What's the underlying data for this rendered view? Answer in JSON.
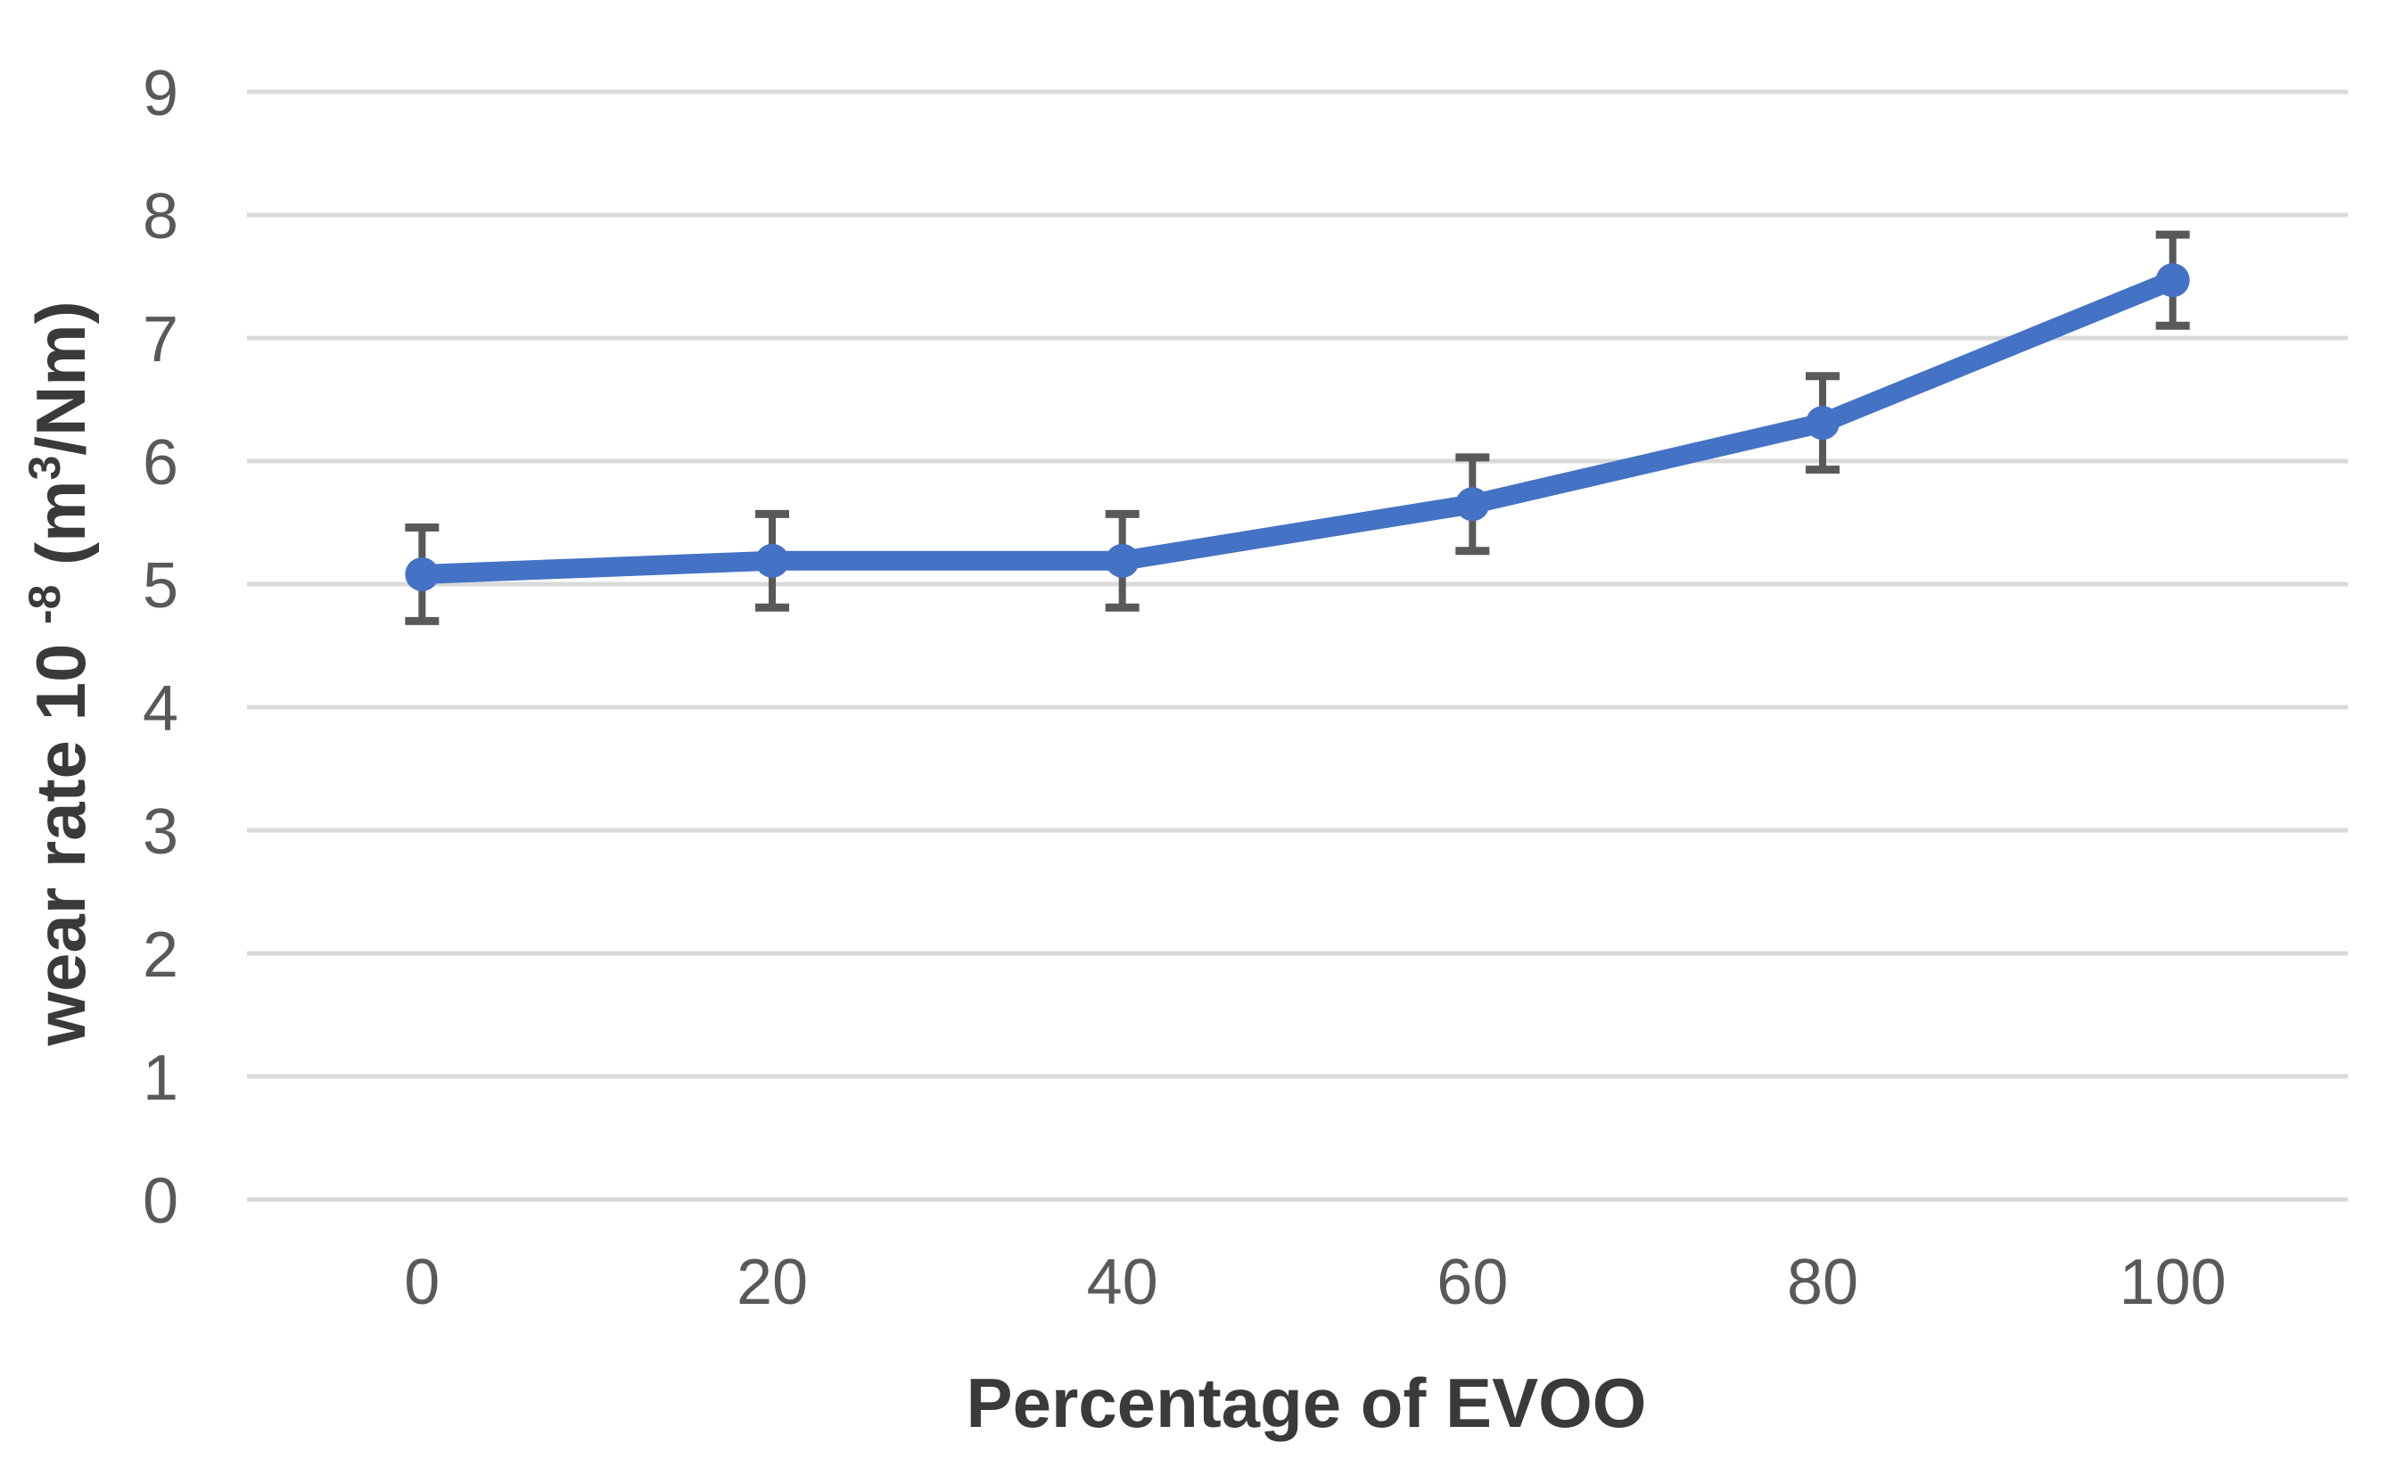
{
  "chart_data": {
    "type": "line",
    "title": "",
    "xlabel": "Percentage of EVOO",
    "ylabel": "wear rate 10⁻⁸ (m³/Nm)",
    "ylabel_parts": [
      {
        "text": "wear rate 10 ",
        "sup": false
      },
      {
        "text": "-8",
        "sup": true
      },
      {
        "text": " (m",
        "sup": false
      },
      {
        "text": "3",
        "sup": true
      },
      {
        "text": "/Nm)",
        "sup": false
      }
    ],
    "x": [
      0,
      20,
      40,
      60,
      80,
      100
    ],
    "x_tick_labels": [
      "0",
      "20",
      "40",
      "60",
      "80",
      "100"
    ],
    "series": [
      {
        "name": "wear rate",
        "values": [
          5.08,
          5.19,
          5.19,
          5.65,
          6.31,
          7.47
        ],
        "error": [
          0.38,
          0.38,
          0.38,
          0.38,
          0.38,
          0.37
        ]
      }
    ],
    "y_ticks": [
      0,
      1,
      2,
      3,
      4,
      5,
      6,
      7,
      8,
      9
    ],
    "ylim": [
      0,
      9
    ],
    "grid": "horizontal",
    "legend": "none",
    "marker": "circle",
    "colors": {
      "line": "#4472C4",
      "marker": "#4472C4",
      "error_bar": "#595959",
      "gridline": "#D9D9D9",
      "tick_label": "#595959",
      "axis_title": "#3A3A3A",
      "background": "#FFFFFF"
    }
  }
}
